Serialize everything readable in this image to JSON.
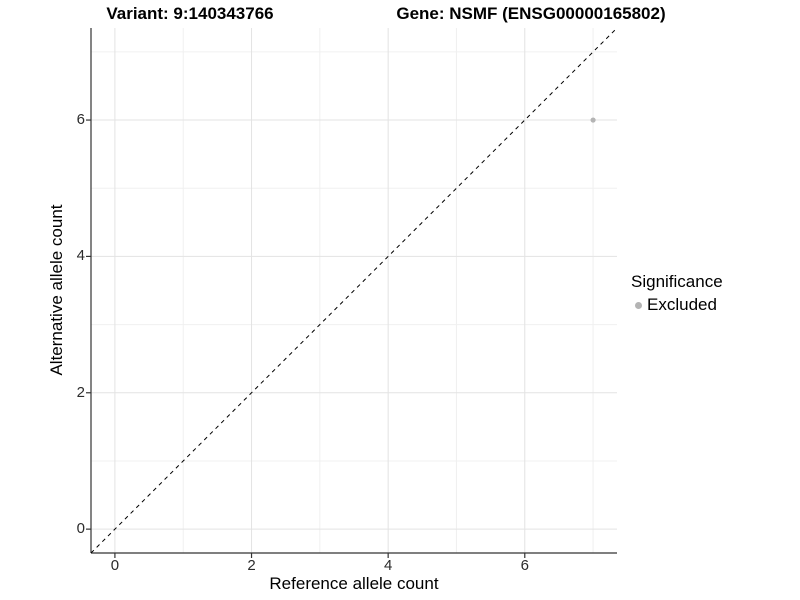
{
  "titles": {
    "left": "Variant: 9:140343766",
    "right": "Gene: NSMF (ENSG00000165802)"
  },
  "chart_data": {
    "type": "scatter",
    "xlabel": "Reference allele count",
    "ylabel": "Alternative allele count",
    "xlim": [
      -0.35,
      7.35
    ],
    "ylim": [
      -0.35,
      7.35
    ],
    "x_ticks": [
      0,
      2,
      4,
      6
    ],
    "y_ticks": [
      0,
      2,
      4,
      6
    ],
    "minor_grid_x": [
      1,
      3,
      5,
      7
    ],
    "minor_grid_y": [
      1,
      3,
      5,
      7
    ],
    "grid": true,
    "points": [
      {
        "x": 7,
        "y": 6,
        "series": "Excluded"
      }
    ],
    "reference_line": {
      "style": "dashed",
      "from": [
        -0.35,
        -0.35
      ],
      "to": [
        7.35,
        7.35
      ],
      "slope": 1,
      "intercept": 0
    },
    "legend": {
      "title": "Significance",
      "position": "right",
      "items": [
        {
          "label": "Excluded",
          "color": "#b4b4b4"
        }
      ]
    },
    "colors": {
      "point": "#b4b4b4",
      "major_grid": "#e3e3e3",
      "minor_grid": "#f0f0f0",
      "axis_line": "#333333",
      "reference_line": "#000000"
    }
  }
}
